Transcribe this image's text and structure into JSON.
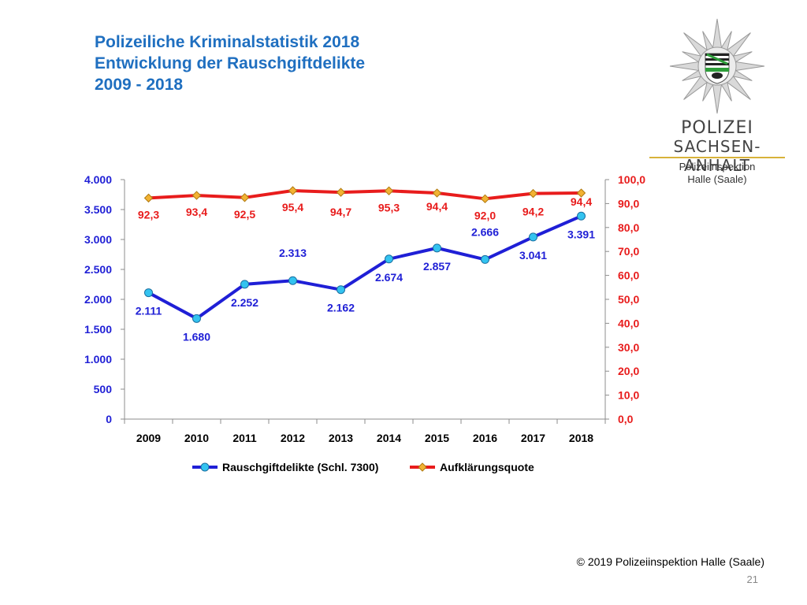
{
  "header": {
    "title_line1": "Polizeiliche Kriminalstatistik 2018",
    "title_line2": "Entwicklung der Rauschgiftdelikte",
    "title_line3": "2009 - 2018"
  },
  "logo": {
    "name_line1": "POLIZEI",
    "name_line2": "SACHSEN-ANHALT",
    "sub_line1": "Polizeiinspektion",
    "sub_line2": "Halle (Saale)"
  },
  "footer": {
    "copyright": "© 2019 Polizeiinspektion Halle (Saale)",
    "page_number": "21"
  },
  "colors": {
    "title": "#1f6fc0",
    "series_cases_line": "#1f1fd6",
    "series_cases_marker": "#33c3f0",
    "series_rate_line": "#e81c1c",
    "series_rate_marker": "#f2b233",
    "axis_left_text": "#1f1fd6",
    "axis_right_text": "#e81c1c"
  },
  "chart_data": {
    "type": "line",
    "categories": [
      "2009",
      "2010",
      "2011",
      "2012",
      "2013",
      "2014",
      "2015",
      "2016",
      "2017",
      "2018"
    ],
    "series": [
      {
        "name": "Rauschgiftdelikte (Schl. 7300)",
        "axis": "left",
        "values": [
          2111,
          1680,
          2252,
          2313,
          2162,
          2674,
          2857,
          2666,
          3041,
          3391
        ],
        "labels": [
          "2.111",
          "1.680",
          "2.252",
          "2.313",
          "2.162",
          "2.674",
          "2.857",
          "2.666",
          "3.041",
          "3.391"
        ]
      },
      {
        "name": "Aufklärungsquote",
        "axis": "right",
        "values": [
          92.3,
          93.4,
          92.5,
          95.4,
          94.7,
          95.3,
          94.4,
          92.0,
          94.2,
          94.4
        ],
        "labels": [
          "92,3",
          "93,4",
          "92,5",
          "95,4",
          "94,7",
          "95,3",
          "94,4",
          "92,0",
          "94,2",
          "94,4"
        ]
      }
    ],
    "y_left": {
      "range": [
        0,
        4000
      ],
      "ticks": [
        0,
        500,
        1000,
        1500,
        2000,
        2500,
        3000,
        3500,
        4000
      ],
      "tick_labels": [
        "0",
        "500",
        "1.000",
        "1.500",
        "2.000",
        "2.500",
        "3.000",
        "3.500",
        "4.000"
      ]
    },
    "y_right": {
      "range": [
        0,
        100
      ],
      "ticks": [
        0,
        10,
        20,
        30,
        40,
        50,
        60,
        70,
        80,
        90,
        100
      ],
      "tick_labels": [
        "0,0",
        "10,0",
        "20,0",
        "30,0",
        "40,0",
        "50,0",
        "60,0",
        "70,0",
        "80,0",
        "90,0",
        "100,0"
      ]
    },
    "grid": false,
    "legend": "bottom"
  }
}
